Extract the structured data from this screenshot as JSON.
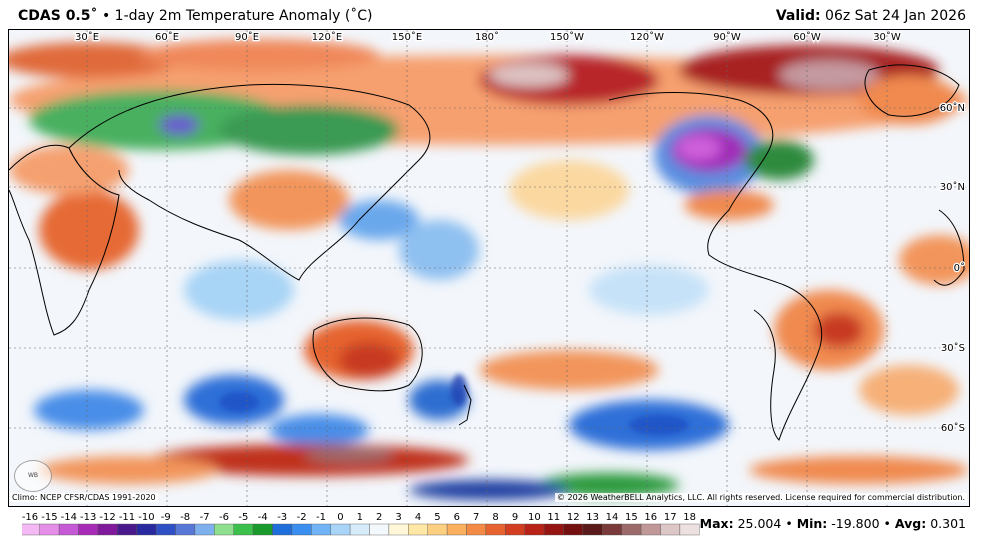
{
  "header": {
    "product": "CDAS 0.5˚",
    "bullet": "•",
    "field": "1-day 2m Temperature Anomaly (˚C)",
    "valid_label": "Valid",
    "valid_time": "06z Sat 24 Jan 2026"
  },
  "map": {
    "longitude_labels": [
      "30˚E",
      "60˚E",
      "90˚E",
      "120˚E",
      "150˚E",
      "180˚",
      "150˚W",
      "120˚W",
      "90˚W",
      "60˚W",
      "30˚W"
    ],
    "latitude_labels": [
      "60˚N",
      "30˚N",
      "0˚",
      "30˚S",
      "60˚S"
    ],
    "projection": "cylindrical, Pacific-centered",
    "watermark_logo": "WeatherBELL"
  },
  "footer": {
    "climo": "Climo: NCEP CFSR/CDAS 1991-2020",
    "copyright": "© 2026 WeatherBELL Analytics, LLC. All rights reserved. License required for commercial distribution."
  },
  "colorbar": {
    "ticks": [
      "-16",
      "-15",
      "-14",
      "-13",
      "-12",
      "-11",
      "-10",
      "-9",
      "-8",
      "-7",
      "-6",
      "-5",
      "-4",
      "-3",
      "-2",
      "-1",
      "0",
      "1",
      "2",
      "3",
      "4",
      "5",
      "6",
      "7",
      "8",
      "9",
      "10",
      "11",
      "12",
      "13",
      "14",
      "15",
      "16",
      "17",
      "18"
    ],
    "colors": [
      "#f4b8f4",
      "#e48ee8",
      "#c65ad6",
      "#a82bb8",
      "#80199c",
      "#4a1a8c",
      "#2a2aa0",
      "#2f4fc4",
      "#5878d8",
      "#7fb0ee",
      "#8ee08e",
      "#3cc04c",
      "#1a9a2a",
      "#1e6edc",
      "#3a8ef0",
      "#70b4f6",
      "#a8d4f8",
      "#d6ecfb",
      "#f3f8fc",
      "#fff7d8",
      "#ffe8a6",
      "#fdcf80",
      "#fbb060",
      "#f38a45",
      "#e6632f",
      "#d23e1f",
      "#b82217",
      "#961512",
      "#741010",
      "#5a1a1a",
      "#7a3a3a",
      "#9c6a6a",
      "#c09898",
      "#dcc6c6",
      "#ece0e0"
    ]
  },
  "stats": {
    "max_label": "Max:",
    "max": "25.004",
    "min_label": "Min:",
    "min": "-19.800",
    "avg_label": "Avg:",
    "avg": "0.301",
    "sep": "•"
  }
}
